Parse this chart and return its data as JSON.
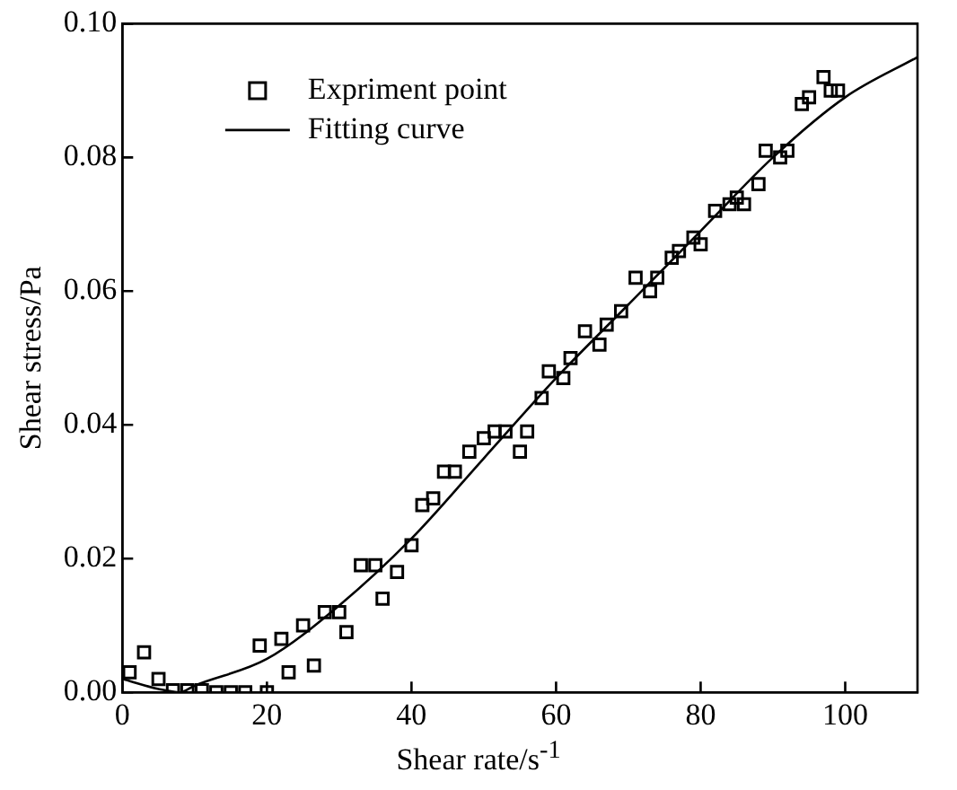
{
  "chart_data": {
    "type": "scatter",
    "xlabel": "Shear rate/s$^{-1}$",
    "ylabel": "Shear stress/Pa",
    "xlim": [
      0,
      110
    ],
    "xticks": [
      0,
      20,
      40,
      60,
      80,
      100
    ],
    "ylim": [
      0,
      0.1
    ],
    "yticks": [
      {
        "value": 0,
        "label": "0.00"
      },
      {
        "value": 0.02,
        "label": "0.02"
      },
      {
        "value": 0.04,
        "label": "0.04"
      },
      {
        "value": 0.06,
        "label": "0.06"
      },
      {
        "value": 0.08,
        "label": "0.08"
      },
      {
        "value": 0.1,
        "label": "0.10"
      }
    ],
    "grid": false,
    "legend": "top left",
    "series": [
      {
        "name": "Expriment point",
        "marker": "square",
        "color": "#000000",
        "x": [
          1,
          3,
          5,
          7,
          9,
          11,
          13,
          15,
          17,
          19,
          20,
          22,
          23,
          25,
          26.5,
          28,
          30,
          31,
          33,
          35,
          36,
          38,
          40,
          41.5,
          43,
          44.5,
          46,
          48,
          50,
          51.5,
          53,
          55,
          56,
          58,
          59,
          61,
          62,
          64,
          66,
          67,
          69,
          71,
          73,
          74,
          76,
          77,
          79,
          80,
          82,
          84,
          85,
          86,
          88,
          89,
          91,
          92,
          94,
          95,
          97,
          98,
          99
        ],
        "values": [
          0.003,
          0.006,
          0.002,
          0.0003,
          0.0003,
          0.0003,
          0,
          0,
          0,
          0.007,
          0,
          0.008,
          0.003,
          0.01,
          0.004,
          0.012,
          0.012,
          0.009,
          0.019,
          0.019,
          0.014,
          0.018,
          0.022,
          0.028,
          0.029,
          0.033,
          0.033,
          0.036,
          0.038,
          0.039,
          0.039,
          0.036,
          0.039,
          0.044,
          0.048,
          0.047,
          0.05,
          0.054,
          0.052,
          0.055,
          0.057,
          0.062,
          0.06,
          0.062,
          0.065,
          0.066,
          0.068,
          0.067,
          0.072,
          0.073,
          0.074,
          0.073,
          0.076,
          0.081,
          0.08,
          0.081,
          0.088,
          0.089,
          0.092,
          0.09,
          0.09
        ]
      },
      {
        "name": "Fitting curve",
        "type": "line",
        "marker": "none",
        "color": "#000000",
        "x": [
          0,
          5,
          8,
          10,
          20,
          30,
          40,
          50,
          60,
          70,
          80,
          90,
          100,
          110
        ],
        "values": [
          0.002,
          0.0005,
          0,
          0.001,
          0.005,
          0.013,
          0.023,
          0.035,
          0.047,
          0.058,
          0.069,
          0.08,
          0.089,
          0.095
        ]
      }
    ]
  }
}
